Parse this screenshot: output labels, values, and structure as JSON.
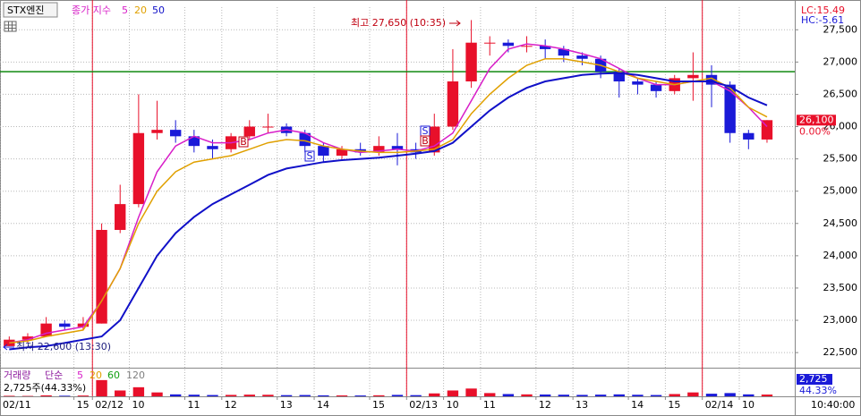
{
  "chart_data": {
    "type": "candlestick",
    "title": "STX엔진",
    "categories": [
      "02/11",
      null,
      null,
      null,
      "15",
      "02/12",
      null,
      "10",
      null,
      null,
      "11",
      null,
      "12",
      null,
      null,
      "13",
      null,
      "14",
      null,
      null,
      "15",
      null,
      "02/13",
      null,
      "10",
      null,
      "11",
      null,
      null,
      "12",
      null,
      "13",
      null,
      null,
      "14",
      null,
      "15",
      null,
      "02/14",
      null,
      "10",
      null
    ],
    "open": [
      22600,
      22700,
      22750,
      22950,
      22900,
      22950,
      24400,
      24800,
      25900,
      25950,
      25850,
      25700,
      25650,
      25850,
      26000,
      26000,
      25900,
      25700,
      25550,
      25650,
      25600,
      25700,
      25650,
      25600,
      26000,
      26700,
      27300,
      27300,
      27250,
      27250,
      27200,
      27100,
      27050,
      26850,
      26700,
      26650,
      26550,
      26750,
      26800,
      26650,
      25900,
      25800
    ],
    "high": [
      22750,
      22800,
      23050,
      23000,
      23050,
      24500,
      25100,
      26500,
      26400,
      26100,
      25950,
      25800,
      25900,
      26100,
      26200,
      26050,
      25950,
      25750,
      25700,
      25750,
      25850,
      25900,
      25750,
      26200,
      27200,
      27650,
      27400,
      27350,
      27400,
      27350,
      27250,
      27150,
      27100,
      26900,
      26750,
      26700,
      26800,
      27150,
      26950,
      26700,
      25950,
      26100
    ],
    "low": [
      22600,
      22650,
      22750,
      22850,
      22850,
      22950,
      24350,
      24750,
      25800,
      25750,
      25600,
      25500,
      25600,
      25800,
      25900,
      25850,
      25600,
      25450,
      25500,
      25550,
      25550,
      25400,
      25500,
      25550,
      25950,
      26600,
      27100,
      27150,
      27150,
      27050,
      27000,
      26950,
      26750,
      26450,
      26500,
      26450,
      26500,
      26400,
      26300,
      25750,
      25650,
      25750
    ],
    "close": [
      22700,
      22750,
      22950,
      22900,
      22950,
      24400,
      24800,
      25900,
      25950,
      25850,
      25700,
      25650,
      25850,
      26000,
      26000,
      25900,
      25700,
      25550,
      25650,
      25600,
      25700,
      25650,
      25600,
      26000,
      26700,
      27300,
      27300,
      27250,
      27250,
      27200,
      27100,
      27050,
      26850,
      26700,
      26650,
      26550,
      26750,
      26800,
      26650,
      25900,
      25800,
      26100
    ],
    "up_color": "#e8102a",
    "down_color": "#1a1ad8",
    "ma_label": "종가 지수",
    "series": [
      {
        "name": "5",
        "color": "#d81ec8",
        "values": [
          22650,
          22700,
          22800,
          22850,
          22900,
          23300,
          23800,
          24600,
          25300,
          25700,
          25850,
          25750,
          25750,
          25800,
          25900,
          25950,
          25900,
          25750,
          25650,
          25600,
          25620,
          25650,
          25620,
          25700,
          25900,
          26400,
          26900,
          27200,
          27280,
          27250,
          27200,
          27130,
          27050,
          26900,
          26750,
          26650,
          26650,
          26700,
          26700,
          26550,
          26300,
          26000
        ]
      },
      {
        "name": "20",
        "color": "#e0a000",
        "values": [
          22650,
          22680,
          22750,
          22800,
          22850,
          23300,
          23800,
          24500,
          25000,
          25300,
          25450,
          25500,
          25550,
          25650,
          25750,
          25800,
          25780,
          25700,
          25650,
          25620,
          25600,
          25600,
          25620,
          25650,
          25800,
          26200,
          26500,
          26750,
          26950,
          27050,
          27050,
          27000,
          26950,
          26850,
          26750,
          26700,
          26650,
          26700,
          26750,
          26600,
          26300,
          26150
        ]
      },
      {
        "name": "50",
        "color": "#1010c8",
        "values": [
          22550,
          22580,
          22600,
          22650,
          22700,
          22750,
          23000,
          23500,
          24000,
          24350,
          24600,
          24800,
          24950,
          25100,
          25250,
          25350,
          25400,
          25450,
          25480,
          25500,
          25520,
          25550,
          25580,
          25620,
          25750,
          26000,
          26250,
          26450,
          26600,
          26700,
          26750,
          26800,
          26820,
          26830,
          26800,
          26750,
          26700,
          26700,
          26700,
          26620,
          26450,
          26330
        ]
      }
    ],
    "ylim": [
      22280,
      27850
    ],
    "yticks": [
      {
        "value": 22500,
        "label": "22,500"
      },
      {
        "value": 23000,
        "label": "23,000"
      },
      {
        "value": 23500,
        "label": "23,500"
      },
      {
        "value": 24000,
        "label": "24,000"
      },
      {
        "value": 24500,
        "label": "24,500"
      },
      {
        "value": 25000,
        "label": "25,000"
      },
      {
        "value": 25500,
        "label": "25,500"
      },
      {
        "value": 26000,
        "label": "26,000"
      },
      {
        "value": 26500,
        "label": "26,500"
      },
      {
        "value": 27000,
        "label": "27,000"
      },
      {
        "value": 27500,
        "label": "27,500"
      }
    ],
    "grid": true,
    "reference_line": {
      "value": 26850,
      "color": "#108a10"
    },
    "annotations": {
      "high": "최고 27,650 (10:35)",
      "low": "최저 22,600 (13:30)"
    },
    "signals": [
      "B",
      "S",
      "S",
      "B"
    ],
    "indicators": [
      "LC:15.49",
      "HC:-5.61"
    ],
    "last_price": {
      "value": 26100,
      "label": "26,100"
    },
    "change": "0.00%",
    "time": "10:40:00",
    "volume": {
      "label": "거래량",
      "ma_label": "단순",
      "ma_periods": [
        {
          "name": "5",
          "color": "#d81ec8"
        },
        {
          "name": "20",
          "color": "#e0a000"
        },
        {
          "name": "60",
          "color": "#10a010"
        },
        {
          "name": "120",
          "color": "#808080"
        }
      ],
      "values": [
        800,
        600,
        1500,
        900,
        1200,
        25000,
        9000,
        14000,
        6000,
        3000,
        2500,
        2000,
        2200,
        2600,
        2400,
        1800,
        2000,
        1500,
        1400,
        1300,
        1600,
        2200,
        1800,
        4500,
        9000,
        12000,
        5000,
        3500,
        3000,
        2800,
        2500,
        2200,
        2600,
        3000,
        2400,
        2000,
        3500,
        6000,
        4000,
        5000,
        3000,
        2725
      ],
      "ylim": [
        0,
        40000
      ],
      "summary": "2,725주(44.33%)",
      "last": "2,725",
      "ratio": "44.33%"
    }
  }
}
